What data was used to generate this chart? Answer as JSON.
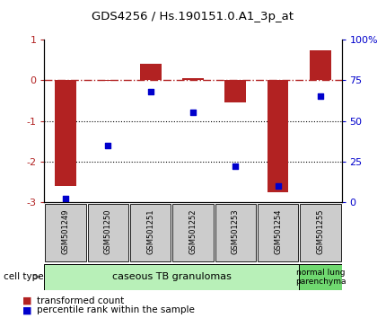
{
  "title": "GDS4256 / Hs.190151.0.A1_3p_at",
  "samples": [
    "GSM501249",
    "GSM501250",
    "GSM501251",
    "GSM501252",
    "GSM501253",
    "GSM501254",
    "GSM501255"
  ],
  "red_values": [
    -2.6,
    -0.02,
    0.4,
    0.05,
    -0.55,
    -2.75,
    0.75
  ],
  "blue_values": [
    2.0,
    35.0,
    68.0,
    55.0,
    22.0,
    10.0,
    65.0
  ],
  "red_color": "#b22222",
  "blue_color": "#0000cc",
  "ylim_left": [
    -3.0,
    1.0
  ],
  "ylim_right": [
    0,
    100
  ],
  "y_right_ticks": [
    0,
    25,
    50,
    75,
    100
  ],
  "y_right_labels": [
    "0",
    "25",
    "50",
    "75",
    "100%"
  ],
  "y_left_ticks": [
    -3,
    -2,
    -1,
    0,
    1
  ],
  "dotted_lines": [
    -1,
    -2
  ],
  "dashdot_line": 0,
  "group1_count": 6,
  "group2_count": 1,
  "group1_label": "caseous TB granulomas",
  "group2_label": "normal lung\nparenchyma",
  "group1_color": "#b8f0b8",
  "group2_color": "#70d870",
  "cell_type_label": "cell type",
  "legend_red": "transformed count",
  "legend_blue": "percentile rank within the sample",
  "tick_label_bg": "#cccccc",
  "bar_width": 0.5
}
